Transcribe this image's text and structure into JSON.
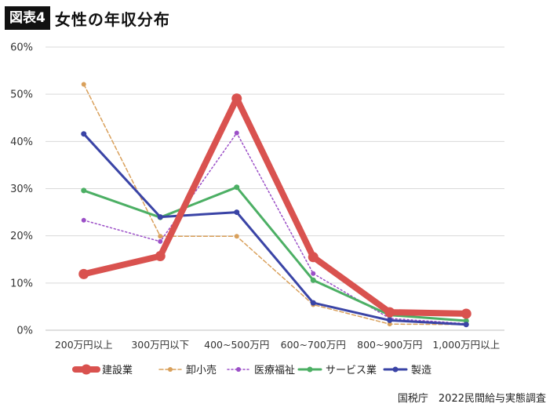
{
  "figure": {
    "tag": "図表4",
    "title": "女性の年収分布"
  },
  "source": "国税庁　2022民間給与実態調査",
  "chart_data": {
    "type": "line",
    "categories": [
      "200万円以上",
      "300万円以下",
      "400~500万円",
      "600~700万円",
      "800~900万円",
      "1,000万円以上"
    ],
    "ylim": [
      0,
      60
    ],
    "yticks": [
      0,
      10,
      20,
      30,
      40,
      50,
      60
    ],
    "ytick_labels": [
      "0%",
      "10%",
      "20%",
      "30%",
      "40%",
      "50%",
      "60%"
    ],
    "grid": true,
    "legend_position": "bottom",
    "series": [
      {
        "name": "建設業",
        "color": "#d9524f",
        "style": "solid",
        "weight": "heavy",
        "values": [
          11.9,
          15.7,
          49.1,
          15.5,
          3.8,
          3.5
        ]
      },
      {
        "name": "卸小売",
        "color": "#d9a05b",
        "style": "dashed",
        "weight": "thin",
        "values": [
          52.1,
          19.9,
          19.9,
          5.4,
          1.3,
          1.2
        ]
      },
      {
        "name": "医療福祉",
        "color": "#9b4fc7",
        "style": "dotted",
        "weight": "thin",
        "values": [
          23.3,
          18.8,
          41.8,
          12.0,
          2.5,
          1.4
        ]
      },
      {
        "name": "サービス業",
        "color": "#4caf64",
        "style": "solid",
        "weight": "medium",
        "values": [
          29.6,
          23.9,
          30.3,
          10.6,
          3.2,
          2.0
        ]
      },
      {
        "name": "製造",
        "color": "#3a44a6",
        "style": "solid",
        "weight": "medium",
        "values": [
          41.6,
          24.0,
          25.0,
          5.8,
          2.1,
          1.2
        ]
      }
    ]
  }
}
